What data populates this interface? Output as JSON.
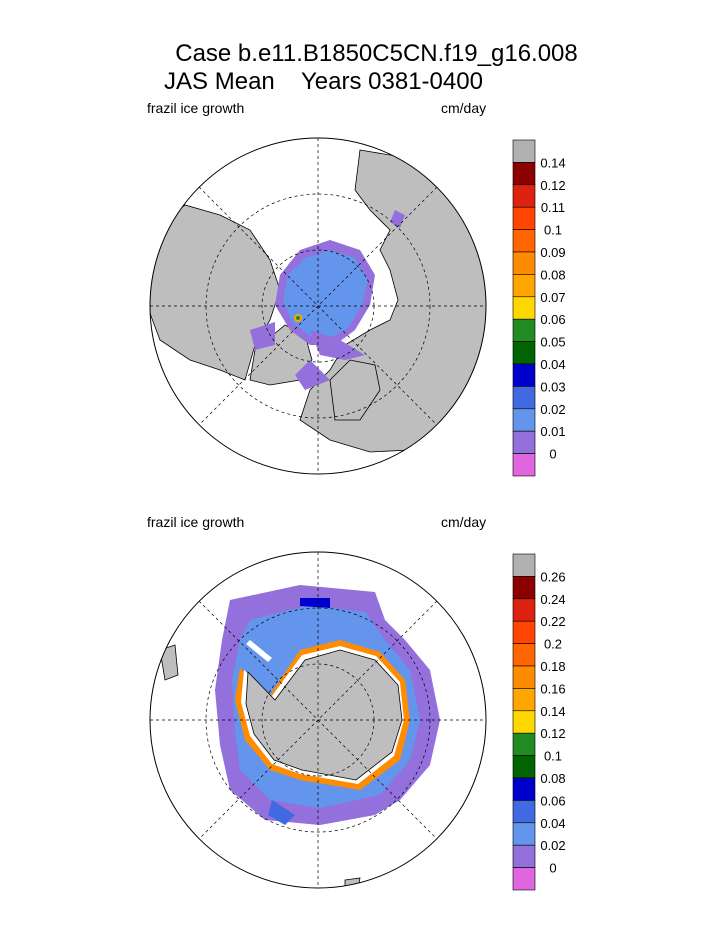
{
  "figure": {
    "title_line1": "Case b.e11.B1850C5CN.f19_g16.008",
    "title_line2": "JAS Mean    Years 0381-0400"
  },
  "chart_data": [
    {
      "type": "heatmap",
      "region": "Northern Hemisphere polar stereographic",
      "left_label": "frazil ice growth",
      "right_label": "cm/day",
      "legend_placement": "right",
      "colorbar_ticks": [
        "0",
        "0.01",
        "0.02",
        "0.03",
        "0.04",
        "0.05",
        "0.06",
        "0.07",
        "0.08",
        "0.09",
        "0.1",
        "0.11",
        "0.12",
        "0.14"
      ],
      "colorbar_colors": [
        "#e066e0",
        "#9370db",
        "#6495ed",
        "#4169e1",
        "#0000cd",
        "#006400",
        "#228b22",
        "#ffd700",
        "#ffa500",
        "#ff8c00",
        "#ff6600",
        "#ff4500",
        "#dd2211",
        "#8b0000",
        "#b0b0b0"
      ]
    },
    {
      "type": "heatmap",
      "region": "Southern Hemisphere polar stereographic",
      "left_label": "frazil ice growth",
      "right_label": "cm/day",
      "legend_placement": "right",
      "colorbar_ticks": [
        "0",
        "0.02",
        "0.04",
        "0.06",
        "0.08",
        "0.1",
        "0.12",
        "0.14",
        "0.16",
        "0.18",
        "0.2",
        "0.22",
        "0.24",
        "0.26"
      ],
      "colorbar_colors": [
        "#e066e0",
        "#9370db",
        "#6495ed",
        "#4169e1",
        "#0000cd",
        "#006400",
        "#228b22",
        "#ffd700",
        "#ffa500",
        "#ff8c00",
        "#ff6600",
        "#ff4500",
        "#dd2211",
        "#8b0000",
        "#b0b0b0"
      ]
    }
  ]
}
